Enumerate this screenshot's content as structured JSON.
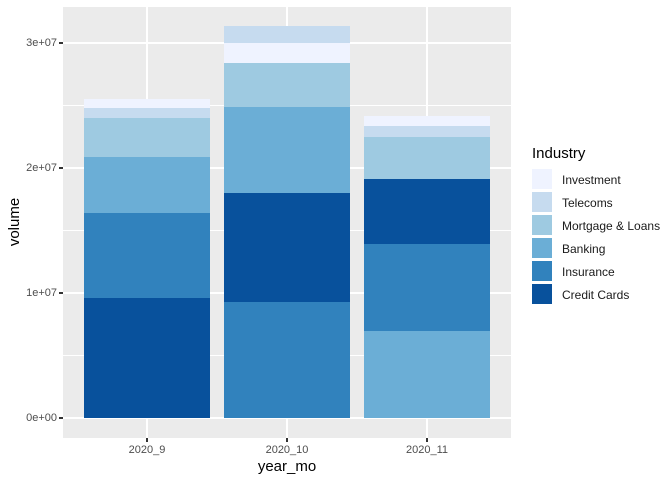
{
  "chart_data": {
    "type": "bar",
    "subtype": "stacked",
    "title": "",
    "xlabel": "year_mo",
    "ylabel": "volume",
    "categories": [
      "2020_9",
      "2020_10",
      "2020_11"
    ],
    "series": [
      {
        "name": "Investment",
        "color": "#EFF3FF",
        "values": [
          700000,
          1600000,
          800000
        ]
      },
      {
        "name": "Telecoms",
        "color": "#C6DBEF",
        "values": [
          800000,
          1400000,
          900000
        ]
      },
      {
        "name": "Mortgage & Loans",
        "color": "#9ECAE1",
        "values": [
          3100000,
          3500000,
          3400000
        ]
      },
      {
        "name": "Banking",
        "color": "#6BAED6",
        "values": [
          4500000,
          6900000,
          7000000
        ]
      },
      {
        "name": "Insurance",
        "color": "#3182BD",
        "values": [
          6800000,
          9300000,
          6900000
        ]
      },
      {
        "name": "Credit Cards",
        "color": "#08519C",
        "values": [
          9600000,
          8700000,
          5200000
        ]
      }
    ],
    "stack_order_bottom_to_top": {
      "2020_9": [
        "Credit Cards",
        "Insurance",
        "Banking",
        "Mortgage & Loans",
        "Telecoms",
        "Investment"
      ],
      "2020_10": [
        "Insurance",
        "Credit Cards",
        "Banking",
        "Mortgage & Loans",
        "Investment",
        "Telecoms"
      ],
      "2020_11": [
        "Banking",
        "Insurance",
        "Credit Cards",
        "Mortgage & Loans",
        "Telecoms",
        "Investment"
      ]
    },
    "bar_totals": [
      25500000,
      31400000,
      24200000
    ],
    "y_axis": {
      "ticks": [
        {
          "label": "0e+00",
          "value": 0
        },
        {
          "label": "1e+07",
          "value": 10000000
        },
        {
          "label": "2e+07",
          "value": 20000000
        },
        {
          "label": "3e+07",
          "value": 30000000
        }
      ],
      "minor_values": [
        5000000,
        15000000,
        25000000
      ],
      "range": [
        0,
        33000000
      ]
    },
    "x_axis": {
      "ticks": [
        {
          "label": "2020_9"
        },
        {
          "label": "2020_10"
        },
        {
          "label": "2020_11"
        }
      ]
    },
    "legend": {
      "title": "Industry",
      "position": "right",
      "entries": [
        {
          "label": "Investment",
          "color": "#EFF3FF"
        },
        {
          "label": "Telecoms",
          "color": "#C6DBEF"
        },
        {
          "label": "Mortgage & Loans",
          "color": "#9ECAE1"
        },
        {
          "label": "Banking",
          "color": "#6BAED6"
        },
        {
          "label": "Insurance",
          "color": "#3182BD"
        },
        {
          "label": "Credit Cards",
          "color": "#08519C"
        }
      ]
    },
    "colors": {
      "panel_background": "#EBEBEB",
      "plot_background": "#FFFFFF",
      "gridline": "#FFFFFF",
      "tick_text": "#4D4D4D",
      "tick_mark": "#333333",
      "title_text": "#000000"
    },
    "grid": true
  }
}
